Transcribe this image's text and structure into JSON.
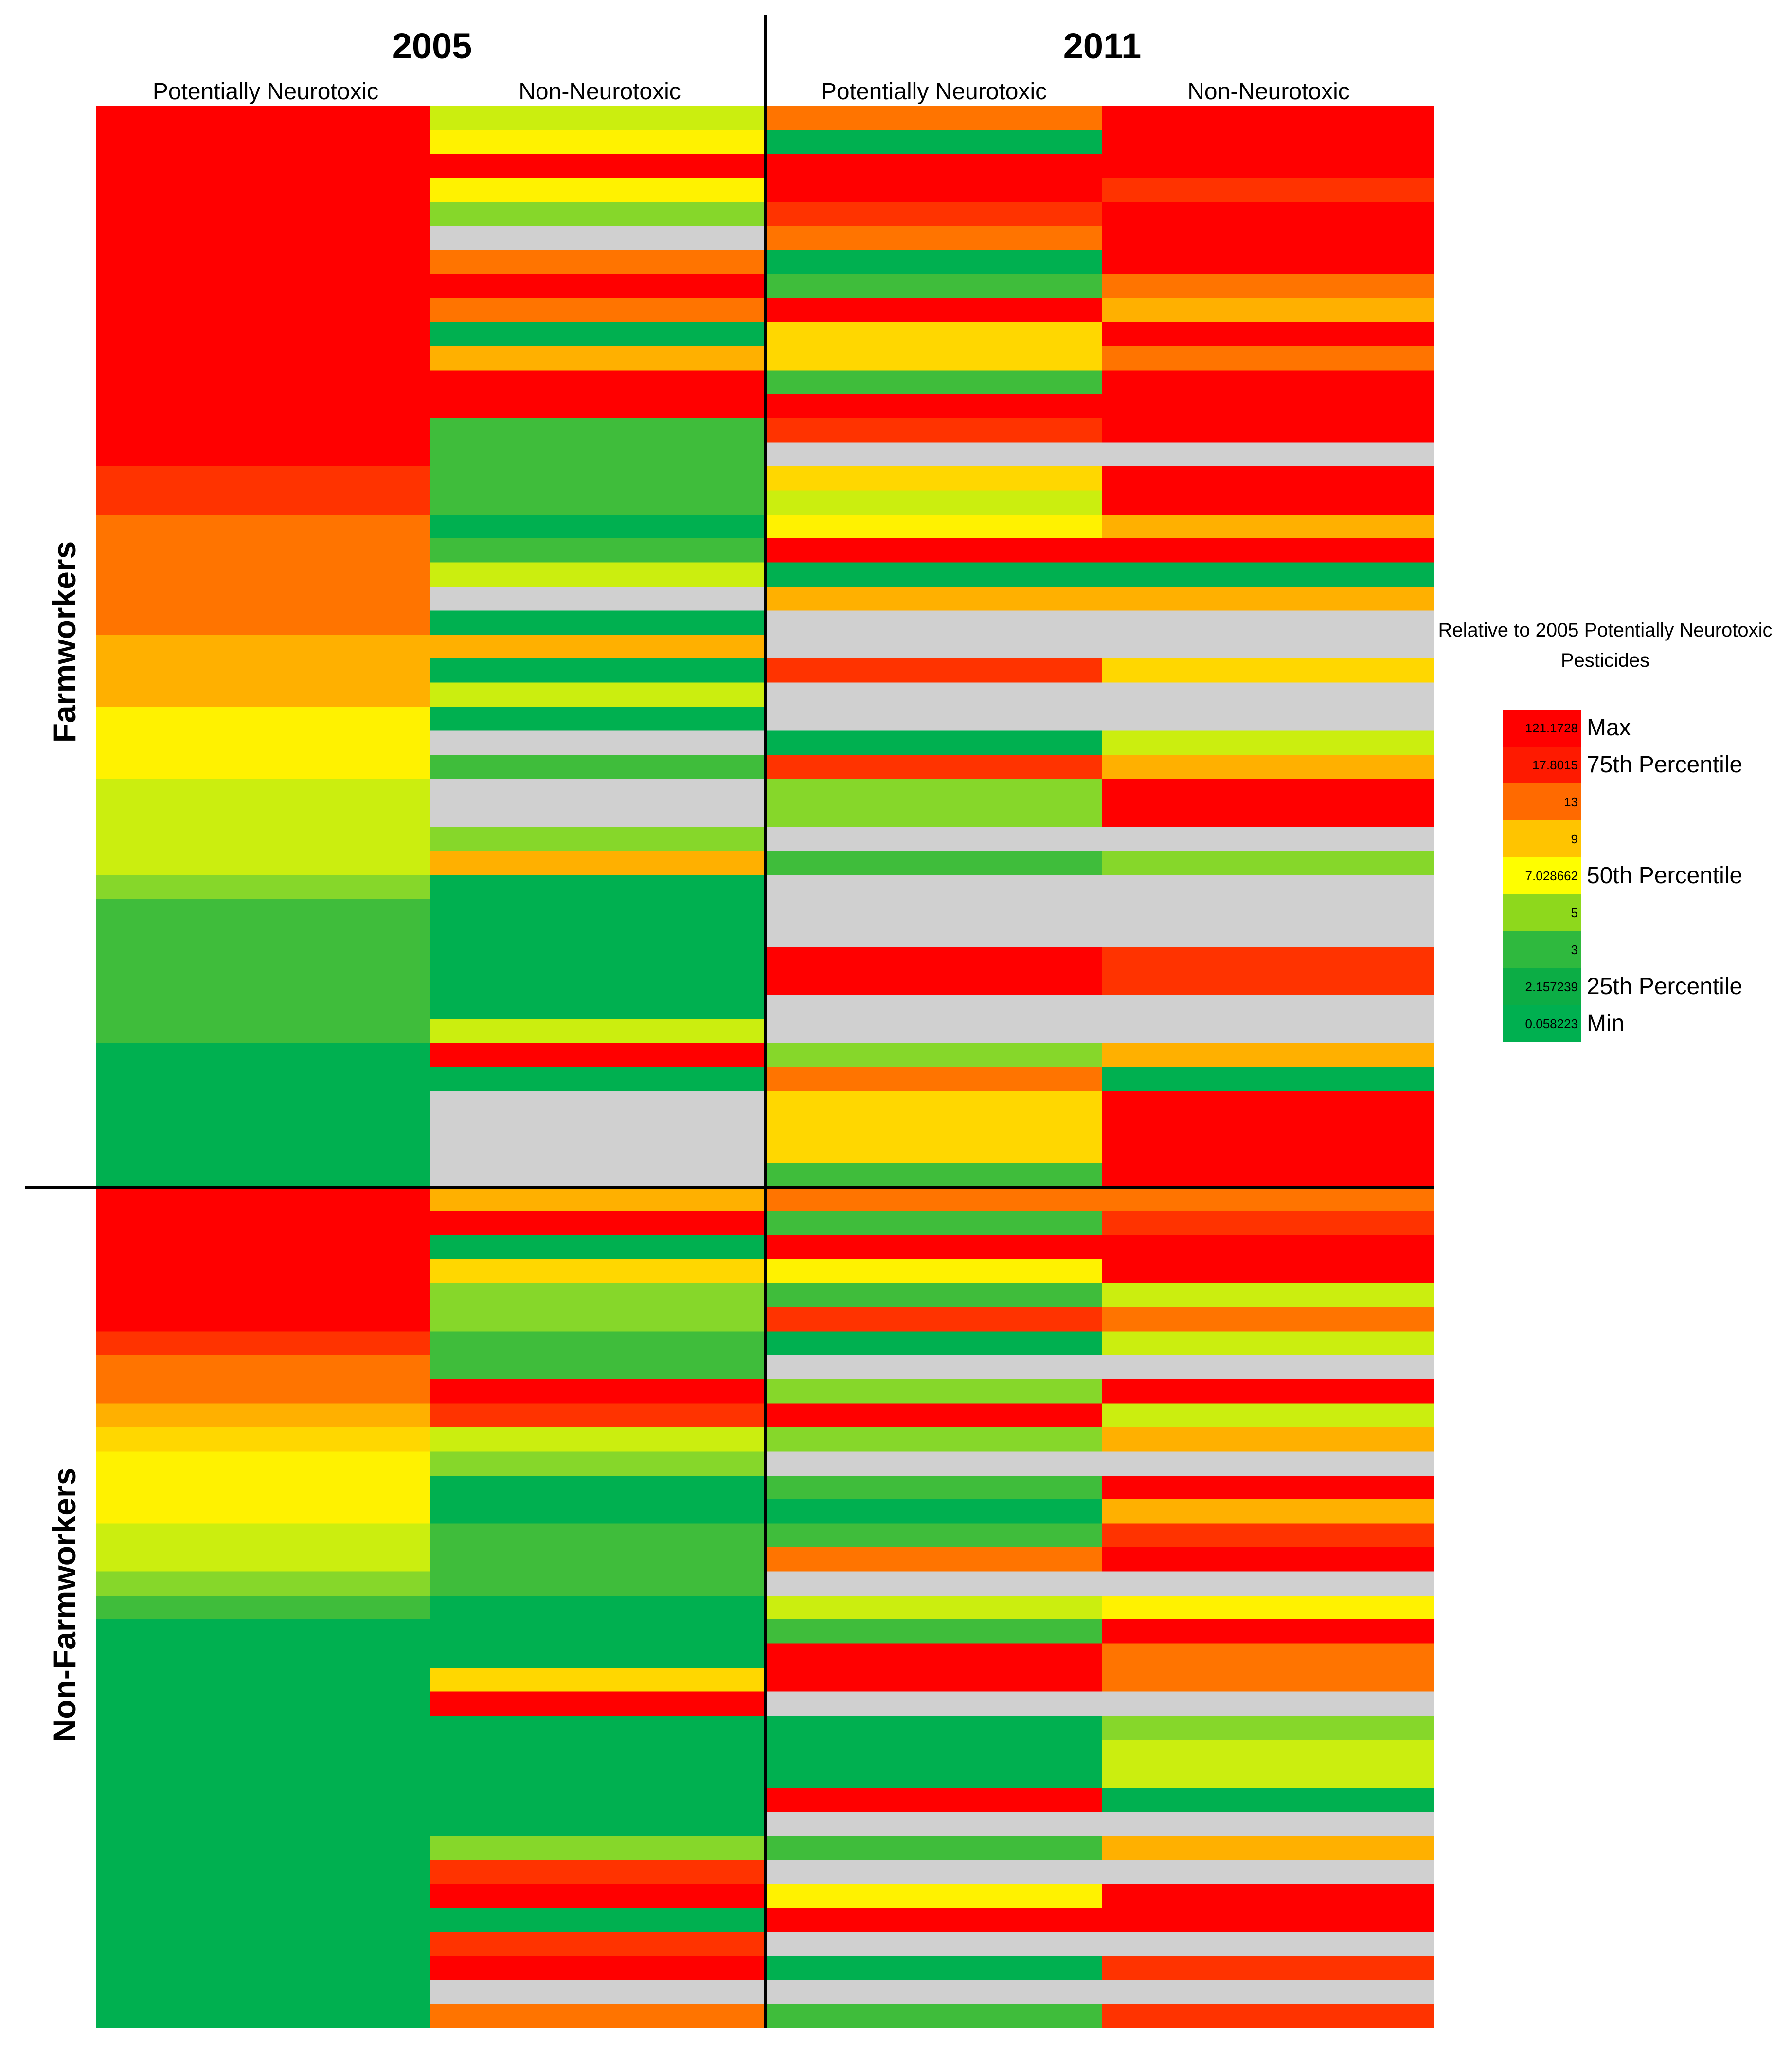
{
  "chart_data": {
    "type": "heatmap",
    "title": "",
    "years": [
      "2005",
      "2011"
    ],
    "columns": [
      "Potentially Neurotoxic",
      "Non-Neurotoxic"
    ],
    "row_groups": [
      {
        "name": "Farmworkers",
        "row_count": 45
      },
      {
        "name": "Non-Farmworkers",
        "row_count": 35
      }
    ],
    "rows": [
      [
        "red",
        "lime",
        "orange",
        "red"
      ],
      [
        "red",
        "yellow",
        "green",
        "red"
      ],
      [
        "red",
        "red",
        "red",
        "red"
      ],
      [
        "red",
        "yellow",
        "red",
        "orangered"
      ],
      [
        "red",
        "lightgreen",
        "orangered",
        "red"
      ],
      [
        "red",
        "gray",
        "orange",
        "red"
      ],
      [
        "red",
        "orange",
        "green",
        "red"
      ],
      [
        "red",
        "red",
        "green3",
        "orange"
      ],
      [
        "red",
        "orange",
        "red",
        "amber"
      ],
      [
        "red",
        "green",
        "gold",
        "red"
      ],
      [
        "red",
        "amber",
        "gold",
        "orange"
      ],
      [
        "red",
        "red",
        "green3",
        "red"
      ],
      [
        "red",
        "red",
        "red",
        "red"
      ],
      [
        "red",
        "green3",
        "orangered",
        "red"
      ],
      [
        "red",
        "green3",
        "gray",
        "gray"
      ],
      [
        "orangered",
        "green3",
        "gold",
        "red"
      ],
      [
        "orangered",
        "green3",
        "lime",
        "red"
      ],
      [
        "orange",
        "green",
        "yellow",
        "amber"
      ],
      [
        "orange",
        "green3",
        "red",
        "red"
      ],
      [
        "orange",
        "lime",
        "green",
        "green"
      ],
      [
        "orange",
        "gray",
        "amber",
        "amber"
      ],
      [
        "orange",
        "green",
        "gray",
        "gray"
      ],
      [
        "amber",
        "amber",
        "gray",
        "gray"
      ],
      [
        "amber",
        "green",
        "orangered",
        "gold"
      ],
      [
        "amber",
        "lime",
        "gray",
        "gray"
      ],
      [
        "yellow",
        "green",
        "gray",
        "gray"
      ],
      [
        "yellow",
        "gray",
        "green",
        "lime"
      ],
      [
        "yellow",
        "green3",
        "orangered",
        "amber"
      ],
      [
        "lime",
        "gray",
        "lightgreen",
        "red"
      ],
      [
        "lime",
        "gray",
        "lightgreen",
        "red"
      ],
      [
        "lime",
        "lightgreen",
        "gray",
        "gray"
      ],
      [
        "lime",
        "amber",
        "green3",
        "lightgreen"
      ],
      [
        "lightgreen",
        "green",
        "gray",
        "gray"
      ],
      [
        "green3",
        "green",
        "gray",
        "gray"
      ],
      [
        "green3",
        "green",
        "gray",
        "gray"
      ],
      [
        "green3",
        "green",
        "red",
        "orangered"
      ],
      [
        "green3",
        "green",
        "red",
        "orangered"
      ],
      [
        "green3",
        "green",
        "gray",
        "gray"
      ],
      [
        "green3",
        "lime",
        "gray",
        "gray"
      ],
      [
        "green",
        "red",
        "lightgreen",
        "amber"
      ],
      [
        "green",
        "green",
        "orange",
        "green"
      ],
      [
        "green",
        "gray",
        "gold",
        "red"
      ],
      [
        "green",
        "gray",
        "gold",
        "red"
      ],
      [
        "green",
        "gray",
        "gold",
        "red"
      ],
      [
        "green",
        "gray",
        "green3",
        "red"
      ],
      [
        "red",
        "amber",
        "orange",
        "orange"
      ],
      [
        "red",
        "red",
        "green3",
        "orangered"
      ],
      [
        "red",
        "green",
        "red",
        "red"
      ],
      [
        "red",
        "gold",
        "yellow",
        "red"
      ],
      [
        "red",
        "lightgreen",
        "green3",
        "lime"
      ],
      [
        "red",
        "lightgreen",
        "orangered",
        "orange"
      ],
      [
        "orangered",
        "green3",
        "green",
        "lime"
      ],
      [
        "orange",
        "green3",
        "gray",
        "gray"
      ],
      [
        "orange",
        "red",
        "lightgreen",
        "red"
      ],
      [
        "amber",
        "orangered",
        "red",
        "lime"
      ],
      [
        "gold",
        "lime",
        "lightgreen",
        "amber"
      ],
      [
        "yellow",
        "lightgreen",
        "gray",
        "gray"
      ],
      [
        "yellow",
        "green",
        "green3",
        "red"
      ],
      [
        "yellow",
        "green",
        "green",
        "amber"
      ],
      [
        "lime",
        "green3",
        "green3",
        "orangered"
      ],
      [
        "lime",
        "green3",
        "orange",
        "red"
      ],
      [
        "lightgreen",
        "green3",
        "gray",
        "gray"
      ],
      [
        "green3",
        "green",
        "lime",
        "yellow"
      ],
      [
        "green",
        "green",
        "green3",
        "red"
      ],
      [
        "green",
        "green",
        "red",
        "orange"
      ],
      [
        "green",
        "gold",
        "red",
        "orange"
      ],
      [
        "green",
        "red",
        "gray",
        "gray"
      ],
      [
        "green",
        "green",
        "green",
        "lightgreen"
      ],
      [
        "green",
        "green",
        "green",
        "lime"
      ],
      [
        "green",
        "green",
        "green",
        "lime"
      ],
      [
        "green",
        "green",
        "red",
        "green"
      ],
      [
        "green",
        "green",
        "gray",
        "gray"
      ],
      [
        "green",
        "lightgreen",
        "green3",
        "amber"
      ],
      [
        "green",
        "orangered",
        "gray",
        "gray"
      ],
      [
        "green",
        "red",
        "yellow",
        "red"
      ],
      [
        "green",
        "green",
        "red",
        "red"
      ],
      [
        "green",
        "orangered",
        "gray",
        "gray"
      ],
      [
        "green",
        "red",
        "green",
        "orangered"
      ],
      [
        "green",
        "gray",
        "gray",
        "gray"
      ],
      [
        "green",
        "orange",
        "green3",
        "orangered"
      ]
    ],
    "colorbar": {
      "title": "Relative to 2005 Potentially Neurotoxic Pesticides",
      "stops": [
        {
          "value": "121.1728",
          "label": "Max",
          "color": "#ff0000"
        },
        {
          "value": "17.8015",
          "label": "75th Percentile",
          "color": "#fe1a00"
        },
        {
          "value": "13",
          "label": "",
          "color": "#ff6a00"
        },
        {
          "value": "9",
          "label": "",
          "color": "#ffc400"
        },
        {
          "value": "7.028662",
          "label": "50th Percentile",
          "color": "#fefe00"
        },
        {
          "value": "5",
          "label": "",
          "color": "#8ed81c"
        },
        {
          "value": "3",
          "label": "",
          "color": "#2fb93e"
        },
        {
          "value": "2.157239",
          "label": "25th Percentile",
          "color": "#0cad45"
        },
        {
          "value": "0.058223",
          "label": "Min",
          "color": "#00b050"
        }
      ]
    },
    "color_map": {
      "red": "#ff0000",
      "orangered": "#ff3300",
      "orange": "#ff7400",
      "amber": "#ffb000",
      "gold": "#ffd700",
      "yellow": "#fff200",
      "lime": "#cbee0f",
      "lightgreen": "#86d72a",
      "green3": "#3fbd3b",
      "green": "#00b050",
      "gray": "#d0d0d0"
    }
  }
}
